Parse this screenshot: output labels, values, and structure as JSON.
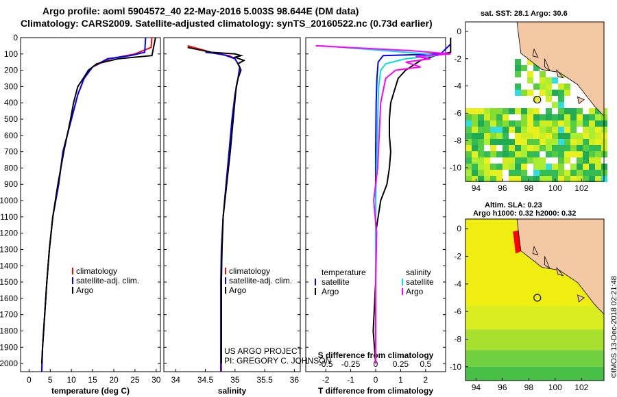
{
  "header": {
    "line1": "Argo profile: aoml 5904572_40 22-May-2016 5.003S 98.644E (DM data)",
    "line2": "Climatology: CARS2009. Satellite-adjusted climatology: synTS_20160522.nc (0.73d earlier)"
  },
  "colors": {
    "climatology": "#ff0000",
    "satellite": "#0000ff",
    "argo": "#000000",
    "sat_salinity": "#00e0e0",
    "argo_salinity": "#ff00ff"
  },
  "chart_data": [
    {
      "type": "line",
      "name": "temperature",
      "xlabel": "temperature (deg C)",
      "xlim": [
        -2,
        31
      ],
      "ylim": [
        2050,
        0
      ],
      "xticks": [
        0,
        5,
        10,
        15,
        20,
        25,
        30
      ],
      "yticks": [
        0,
        100,
        200,
        300,
        400,
        500,
        600,
        700,
        800,
        900,
        1000,
        1100,
        1200,
        1300,
        1400,
        1500,
        1600,
        1700,
        1800,
        1900,
        2000
      ],
      "legend": [
        "climatology",
        "satellite-adj. clim.",
        "Argo"
      ],
      "series": [
        {
          "name": "climatology",
          "depth": [
            0,
            60,
            100,
            130,
            180,
            250,
            350,
            500,
            700,
            900,
            1100,
            1300,
            1500,
            1700,
            1900,
            2050
          ],
          "values": [
            29,
            28.8,
            25,
            19,
            15,
            13,
            11.5,
            10,
            8,
            7,
            5.6,
            4.8,
            4.2,
            3.7,
            3.2,
            3
          ]
        },
        {
          "name": "satellite-adj. clim.",
          "depth": [
            0,
            90,
            110,
            130,
            180,
            250,
            350,
            500,
            700,
            900,
            1100,
            1300,
            1500,
            1700,
            1900,
            2050
          ],
          "values": [
            27.5,
            27.3,
            24,
            18.5,
            15,
            13,
            11.5,
            10,
            8,
            7,
            5.6,
            4.8,
            4.2,
            3.7,
            3.2,
            3
          ]
        },
        {
          "name": "Argo",
          "depth": [
            0,
            5,
            110,
            130,
            160,
            200,
            250,
            300,
            400,
            500,
            700,
            900,
            1100,
            1300,
            1500,
            1700,
            1900,
            2000
          ],
          "values": [
            29.8,
            29.8,
            29,
            21,
            16,
            14,
            12.8,
            11.5,
            10.5,
            9.8,
            8.2,
            6.8,
            5.6,
            4.8,
            4.2,
            3.7,
            3.2,
            3
          ]
        }
      ]
    },
    {
      "type": "line",
      "name": "salinity",
      "xlabel": "salinity",
      "xlim": [
        33.8,
        36.1
      ],
      "ylim": [
        2050,
        0
      ],
      "xticks": [
        34,
        34.5,
        35,
        35.5,
        36
      ],
      "legend": [
        "climatology",
        "satellite-adj. clim.",
        "Argo"
      ],
      "series": [
        {
          "name": "climatology",
          "depth": [
            50,
            80,
            100,
            110,
            130,
            180,
            250,
            350,
            500,
            700,
            900,
            1100,
            1300,
            1500,
            1700,
            1900,
            2050
          ],
          "values": [
            34.2,
            34.5,
            34.7,
            34.9,
            35.0,
            35.08,
            35.05,
            35.0,
            34.95,
            34.9,
            34.85,
            34.8,
            34.78,
            34.77,
            34.77,
            34.77,
            34.77
          ]
        },
        {
          "name": "satellite-adj. clim.",
          "depth": [
            90,
            100,
            110,
            130,
            180,
            250,
            350,
            500,
            700,
            900,
            1100,
            1300,
            1500,
            1700,
            1900,
            2050
          ],
          "values": [
            34.5,
            34.75,
            34.85,
            35.0,
            35.08,
            35.05,
            35.0,
            34.95,
            34.9,
            34.85,
            34.8,
            34.77,
            34.76,
            34.76,
            34.76,
            34.76
          ]
        },
        {
          "name": "Argo",
          "depth": [
            60,
            90,
            100,
            110,
            120,
            140,
            160,
            200,
            250,
            300,
            500,
            700,
            900,
            1100,
            1300,
            1500,
            1700,
            1900,
            2000
          ],
          "values": [
            34.2,
            34.6,
            35.0,
            35.1,
            35.0,
            35.15,
            35.05,
            35.1,
            35.05,
            35.02,
            34.97,
            34.92,
            34.86,
            34.8,
            34.78,
            34.77,
            34.77,
            34.77,
            34.77
          ]
        }
      ]
    },
    {
      "type": "line",
      "name": "difference",
      "xlabel": "T difference from climatology",
      "xlabel2": "S difference from climatology",
      "xlim": [
        -2.8,
        2.8
      ],
      "xticks_T": [
        -2,
        -1,
        0,
        1,
        2
      ],
      "xticks_S_labels": [
        "-0.5",
        "-0.25",
        "0",
        "0.25",
        "0.5"
      ],
      "legend_T": [
        "temperature",
        "satellite",
        "Argo"
      ],
      "legend_S": [
        "salinity",
        "satellite",
        "Argo"
      ],
      "series": [
        {
          "name": "T satellite",
          "depth": [
            40,
            100,
            110,
            150,
            250,
            400,
            700,
            1000,
            1500,
            2000
          ],
          "values": [
            3.0,
            2.6,
            0.3,
            0.1,
            0.05,
            0.02,
            0,
            0,
            0,
            0
          ]
        },
        {
          "name": "T Argo",
          "depth": [
            0,
            90,
            110,
            140,
            200,
            250,
            300,
            400,
            500,
            600,
            700,
            800,
            900,
            1000,
            1100,
            1200,
            1500,
            1800,
            2000
          ],
          "values": [
            3.0,
            3.0,
            2.4,
            1.8,
            1.2,
            0.9,
            0.8,
            0.6,
            0.55,
            0.55,
            0.6,
            0.55,
            0.45,
            0.2,
            0.1,
            0,
            0,
            -0.1,
            0
          ]
        },
        {
          "name": "S satellite",
          "depth": [
            50,
            80,
            100,
            110,
            130,
            160,
            200,
            300,
            500,
            1000,
            2000
          ],
          "values": [
            -0.55,
            0.1,
            0.5,
            0.6,
            0.3,
            0.1,
            0.05,
            0.03,
            0.02,
            0,
            0
          ]
        },
        {
          "name": "S Argo",
          "depth": [
            50,
            80,
            100,
            115,
            130,
            150,
            180,
            200,
            250,
            400,
            800,
            1000,
            1200,
            1500,
            2000
          ],
          "values": [
            -0.6,
            0.35,
            0.75,
            0.4,
            0.55,
            0.3,
            0.45,
            0.2,
            0.1,
            0.05,
            0.02,
            -0.02,
            0.01,
            0,
            0
          ]
        }
      ]
    }
  ],
  "maps": [
    {
      "title": "sat. SST: 28.1  Argo: 30.6",
      "lon_ticks": [
        94,
        96,
        98,
        100,
        102
      ],
      "lat_ticks": [
        0,
        -2,
        -4,
        -6,
        -8,
        -10
      ]
    },
    {
      "title1": "Altim. SLA: 0.23",
      "title2": "Argo h1000: 0.32 h2000: 0.32",
      "lon_ticks": [
        94,
        96,
        98,
        100,
        102
      ],
      "lat_ticks": [
        0,
        -2,
        -4,
        -6,
        -8,
        -10
      ]
    }
  ],
  "credits": {
    "project": "US ARGO PROJECT",
    "pi": "PI: GREGORY C. JOHNSON",
    "stamp": "©IMOS 13-Dec-2018 02:21:48"
  }
}
